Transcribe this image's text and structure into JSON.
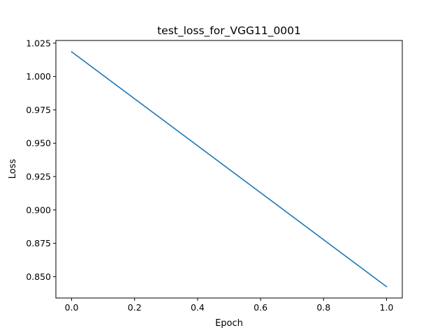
{
  "chart_data": {
    "type": "line",
    "title": "test_loss_for_VGG11_0001",
    "xlabel": "Epoch",
    "ylabel": "Loss",
    "xlim": [
      -0.05,
      1.05
    ],
    "ylim": [
      0.834,
      1.027
    ],
    "grid": false,
    "x": [
      0.0,
      1.0
    ],
    "series": [
      {
        "values": [
          1.0185,
          0.8425
        ],
        "color": "#1f77b4"
      }
    ],
    "x_ticks": [
      {
        "value": 0.0,
        "label": "0.0"
      },
      {
        "value": 0.2,
        "label": "0.2"
      },
      {
        "value": 0.4,
        "label": "0.4"
      },
      {
        "value": 0.6,
        "label": "0.6"
      },
      {
        "value": 0.8,
        "label": "0.8"
      },
      {
        "value": 1.0,
        "label": "1.0"
      }
    ],
    "y_ticks": [
      {
        "value": 0.85,
        "label": "0.850"
      },
      {
        "value": 0.875,
        "label": "0.875"
      },
      {
        "value": 0.9,
        "label": "0.900"
      },
      {
        "value": 0.925,
        "label": "0.925"
      },
      {
        "value": 0.95,
        "label": "0.950"
      },
      {
        "value": 0.975,
        "label": "0.975"
      },
      {
        "value": 1.0,
        "label": "1.000"
      },
      {
        "value": 1.025,
        "label": "1.025"
      }
    ]
  }
}
